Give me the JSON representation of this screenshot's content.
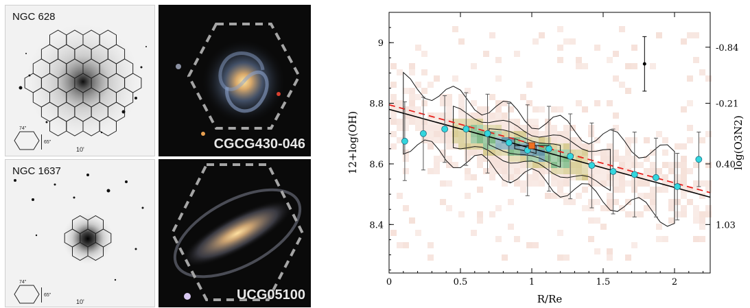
{
  "panels": {
    "ngc628": {
      "label": "NGC 628",
      "scale_h": "74\"",
      "scale_v": "65\"",
      "fov": "10'"
    },
    "cgcg": {
      "label": "CGCG430-046"
    },
    "ngc1637": {
      "label": "NGC 1637",
      "scale_h": "74\"",
      "scale_v": "65\"",
      "fov": "10'"
    },
    "ucg": {
      "label": "UCG05100"
    }
  },
  "chart_data": {
    "type": "scatter",
    "xlabel": "R/Re",
    "ylabel": "12+log(OH)",
    "ylabel_right": "log(O3N2)",
    "xlim": [
      0,
      2.25
    ],
    "ylim": [
      8.24,
      9.1
    ],
    "xticks": [
      0,
      0.5,
      1,
      1.5,
      2
    ],
    "xtick_labels": [
      "0",
      "0.5",
      "1",
      "1.5",
      "2"
    ],
    "yticks": [
      8.4,
      8.6,
      8.8,
      9.0
    ],
    "ytick_labels": [
      "8.4",
      "8.6",
      "8.8",
      "9"
    ],
    "right_ticks": [
      {
        "y": 8.4,
        "label": "1.03"
      },
      {
        "y": 8.6,
        "label": "0.40"
      },
      {
        "y": 8.8,
        "label": "-0.21"
      },
      {
        "y": 8.985,
        "label": "-0.84"
      }
    ],
    "binned_points": [
      {
        "x": 0.11,
        "y": 8.675,
        "err": 0.13
      },
      {
        "x": 0.24,
        "y": 8.7,
        "err": 0.12
      },
      {
        "x": 0.39,
        "y": 8.715,
        "err": 0.11
      },
      {
        "x": 0.54,
        "y": 8.715,
        "err": 0.12
      },
      {
        "x": 0.69,
        "y": 8.7,
        "err": 0.13
      },
      {
        "x": 0.84,
        "y": 8.67,
        "err": 0.13
      },
      {
        "x": 0.97,
        "y": 8.645,
        "err": 0.15
      },
      {
        "x": 1.12,
        "y": 8.65,
        "err": 0.14
      },
      {
        "x": 1.27,
        "y": 8.625,
        "err": 0.14
      },
      {
        "x": 1.42,
        "y": 8.595,
        "err": 0.14
      },
      {
        "x": 1.57,
        "y": 8.575,
        "err": 0.14
      },
      {
        "x": 1.72,
        "y": 8.565,
        "err": 0.14
      },
      {
        "x": 1.87,
        "y": 8.555,
        "err": 0.13
      },
      {
        "x": 2.02,
        "y": 8.525,
        "err": 0.11
      },
      {
        "x": 2.17,
        "y": 8.615,
        "err": 0.09
      }
    ],
    "highlight_point": {
      "x": 1.0,
      "y": 8.66,
      "xerr": 0.12
    },
    "typical_error": {
      "x": 1.79,
      "y": 8.93,
      "err": 0.09
    },
    "fit_solid": {
      "x": [
        0,
        2.25
      ],
      "y": [
        8.78,
        8.49
      ]
    },
    "fit_dashed": {
      "x": [
        0,
        2.25
      ],
      "y": [
        8.795,
        8.505
      ]
    },
    "colors": {
      "binned": "#33d6dd",
      "highlight": "#f07020",
      "fit_solid": "#000000",
      "fit_dashed": "#e8201c",
      "density_low": "#f2d6cc",
      "density_mid": "#c9b86a",
      "density_high": "#4f9f5a",
      "density_peak": "#2f6f86"
    }
  }
}
